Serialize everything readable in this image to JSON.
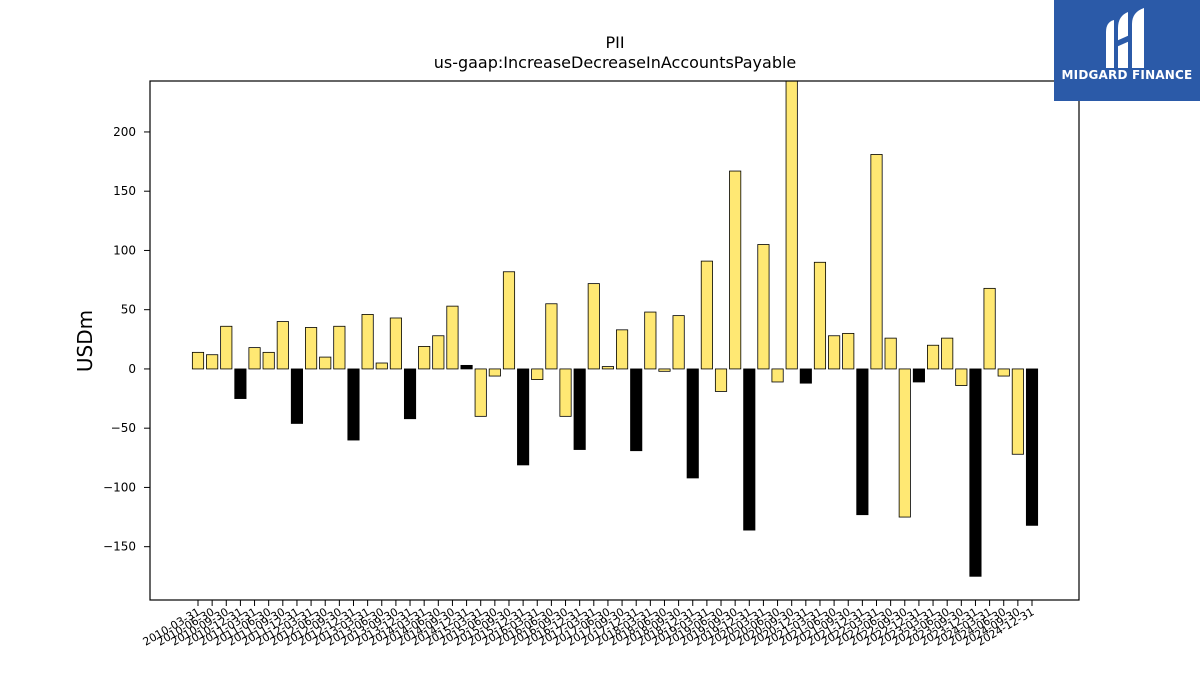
{
  "brand": {
    "name": "MIDGARD FINANCE",
    "bg_color": "#2b5aa8"
  },
  "chart_data": {
    "type": "bar",
    "title": "PII",
    "subtitle": "us-gaap:IncreaseDecreaseInAccountsPayable",
    "ylabel": "USDm",
    "xlabel": "",
    "ylim": [
      -195,
      243
    ],
    "yticks": [
      -150,
      -100,
      -50,
      0,
      50,
      100,
      150,
      200
    ],
    "grid": false,
    "colors": {
      "quarter": "#ffe873",
      "year_end": "#000000",
      "edge": "#000000"
    },
    "categories": [
      "2010-03-31",
      "2010-06-30",
      "2010-09-30",
      "2010-12-31",
      "2011-03-31",
      "2011-06-30",
      "2011-09-30",
      "2011-12-31",
      "2012-03-31",
      "2012-06-30",
      "2012-09-30",
      "2012-12-31",
      "2013-03-31",
      "2013-06-30",
      "2013-09-30",
      "2013-12-31",
      "2014-03-31",
      "2014-06-30",
      "2014-09-30",
      "2014-12-31",
      "2015-03-31",
      "2015-06-30",
      "2015-09-30",
      "2015-12-31",
      "2016-03-31",
      "2016-06-30",
      "2016-09-30",
      "2016-12-31",
      "2017-03-31",
      "2017-06-30",
      "2017-09-30",
      "2017-12-31",
      "2018-03-31",
      "2018-06-30",
      "2018-09-30",
      "2018-12-31",
      "2019-03-31",
      "2019-06-30",
      "2019-09-30",
      "2019-12-31",
      "2020-03-31",
      "2020-06-30",
      "2020-09-30",
      "2020-12-31",
      "2021-03-31",
      "2021-06-30",
      "2021-09-30",
      "2021-12-31",
      "2022-03-31",
      "2022-06-30",
      "2022-09-30",
      "2022-12-31",
      "2023-03-31",
      "2023-06-30",
      "2023-09-30",
      "2023-12-31",
      "2024-03-31",
      "2024-06-30",
      "2024-09-30",
      "2024-12-31"
    ],
    "values": [
      14,
      12,
      36,
      -25,
      18,
      14,
      40,
      -46,
      35,
      10,
      36,
      -60,
      46,
      5,
      43,
      -42,
      19,
      28,
      53,
      3,
      -40,
      -6,
      82,
      -81,
      -9,
      55,
      -40,
      -68,
      72,
      2,
      33,
      -69,
      48,
      -2,
      45,
      -92,
      91,
      -19,
      167,
      -136,
      105,
      -11,
      243,
      -12,
      90,
      28,
      30,
      -123,
      181,
      26,
      -125,
      -11,
      20,
      26,
      -14,
      -175,
      68,
      -6,
      -72,
      -132
    ]
  }
}
